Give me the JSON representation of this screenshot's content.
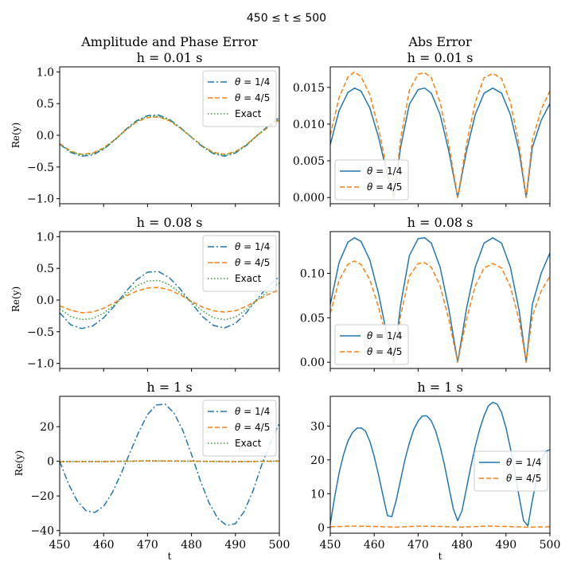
{
  "suptitle": "450 ≤ t ≤ 500",
  "colors": {
    "theta_quarter": "#1f77b4",
    "theta_four_fifths": "#ff7f0e",
    "exact": "#2ca02c"
  },
  "chart_data": [
    {
      "id": "amp-h001",
      "type": "line",
      "title_line1": "Amplitude and Phase Error",
      "title_line2": "h = 0.01 s",
      "xlabel": "",
      "ylabel": "Re(y)",
      "xlim": [
        450,
        500
      ],
      "ylim": [
        -1.08,
        1.08
      ],
      "xticks": [],
      "yticks": [
        -1.0,
        -0.5,
        0.0,
        0.5,
        1.0
      ],
      "ytick_labels": [
        "−1.0",
        "−0.5",
        "0.0",
        "0.5",
        "1.0"
      ],
      "legend_location": "upper-right",
      "series": [
        {
          "name": "θ = 1/4",
          "style": "dashdot",
          "color": "#1f77b4",
          "x": [
            450,
            452.5,
            455,
            457.5,
            460,
            462.5,
            465,
            467.5,
            470,
            472.5,
            475,
            477.5,
            480,
            482.5,
            485,
            487.5,
            490,
            492.5,
            495,
            497.5,
            500
          ],
          "y": [
            -0.14,
            -0.27,
            -0.33,
            -0.31,
            -0.22,
            -0.08,
            0.09,
            0.23,
            0.31,
            0.32,
            0.25,
            0.12,
            -0.03,
            -0.18,
            -0.29,
            -0.33,
            -0.28,
            -0.16,
            0.0,
            0.15,
            0.28
          ]
        },
        {
          "name": "θ = 4/5",
          "style": "dashed",
          "color": "#ff7f0e",
          "x": [
            450,
            452.5,
            455,
            457.5,
            460,
            462.5,
            465,
            467.5,
            470,
            472.5,
            475,
            477.5,
            480,
            482.5,
            485,
            487.5,
            490,
            492.5,
            495,
            497.5,
            500
          ],
          "y": [
            -0.13,
            -0.25,
            -0.3,
            -0.28,
            -0.2,
            -0.07,
            0.08,
            0.21,
            0.28,
            0.29,
            0.23,
            0.11,
            -0.03,
            -0.17,
            -0.27,
            -0.3,
            -0.26,
            -0.15,
            0.0,
            0.13,
            0.24
          ]
        },
        {
          "name": "Exact",
          "style": "dotted",
          "color": "#2ca02c",
          "x": [
            450,
            452.5,
            455,
            457.5,
            460,
            462.5,
            465,
            467.5,
            470,
            472.5,
            475,
            477.5,
            480,
            482.5,
            485,
            487.5,
            490,
            492.5,
            495,
            497.5,
            500
          ],
          "y": [
            -0.14,
            -0.26,
            -0.31,
            -0.29,
            -0.21,
            -0.07,
            0.08,
            0.22,
            0.3,
            0.3,
            0.24,
            0.11,
            -0.03,
            -0.17,
            -0.28,
            -0.31,
            -0.27,
            -0.15,
            0.0,
            0.14,
            0.26
          ]
        }
      ]
    },
    {
      "id": "err-h001",
      "type": "line",
      "title_line1": "Abs Error",
      "title_line2": "h = 0.01 s",
      "xlabel": "",
      "ylabel": "",
      "xlim": [
        450,
        500
      ],
      "ylim": [
        -0.00085,
        0.0178
      ],
      "xticks": [],
      "yticks": [
        0.0,
        0.005,
        0.01,
        0.015
      ],
      "ytick_labels": [
        "0.000",
        "0.005",
        "0.010",
        "0.015"
      ],
      "legend_location": "lower-left",
      "series": [
        {
          "name": "θ = 1/4",
          "style": "solid",
          "color": "#1f77b4",
          "x": [
            450,
            452,
            454,
            455.5,
            457,
            459,
            461,
            463,
            464.5,
            466,
            468,
            470,
            471.5,
            473,
            475,
            477,
            479,
            481,
            483,
            485,
            487,
            489,
            491,
            493,
            494.6,
            496,
            498,
            500
          ],
          "y": [
            0.0072,
            0.0118,
            0.0143,
            0.0149,
            0.0145,
            0.0122,
            0.0082,
            0.003,
            0.0,
            0.0068,
            0.0127,
            0.0147,
            0.0149,
            0.0142,
            0.0113,
            0.0063,
            0.0,
            0.0063,
            0.0113,
            0.0142,
            0.0149,
            0.0142,
            0.0113,
            0.0062,
            0.0,
            0.0068,
            0.0105,
            0.0128
          ]
        },
        {
          "name": "θ = 4/5",
          "style": "dashed",
          "color": "#ff7f0e",
          "x": [
            450,
            452,
            454,
            455.5,
            457,
            459,
            461,
            463,
            464.5,
            466,
            468,
            470,
            471.5,
            473,
            475,
            477,
            479,
            481,
            483,
            485,
            487,
            489,
            491,
            493,
            494.6,
            496,
            498,
            500
          ],
          "y": [
            0.0085,
            0.0136,
            0.0164,
            0.0171,
            0.0165,
            0.014,
            0.0094,
            0.0035,
            0.0,
            0.0079,
            0.0146,
            0.0168,
            0.017,
            0.0163,
            0.013,
            0.0072,
            0.0,
            0.0072,
            0.013,
            0.0163,
            0.0169,
            0.0162,
            0.013,
            0.0071,
            0.0,
            0.0078,
            0.012,
            0.0145
          ]
        }
      ]
    },
    {
      "id": "amp-h008",
      "type": "line",
      "title_line1": "h = 0.08 s",
      "title_line2": "",
      "xlabel": "",
      "ylabel": "Re(y)",
      "xlim": [
        450,
        500
      ],
      "ylim": [
        -1.08,
        1.08
      ],
      "xticks": [],
      "yticks": [
        -1.0,
        -0.5,
        0.0,
        0.5,
        1.0
      ],
      "ytick_labels": [
        "−1.0",
        "−0.5",
        "0.0",
        "0.5",
        "1.0"
      ],
      "legend_location": "upper-right",
      "series": [
        {
          "name": "θ = 1/4",
          "style": "dashdot",
          "color": "#1f77b4",
          "x": [
            450,
            452.5,
            455,
            457.5,
            460,
            462.5,
            465,
            467.5,
            470,
            472.5,
            475,
            477.5,
            480,
            482.5,
            485,
            487.5,
            490,
            492.5,
            495,
            497.5,
            500
          ],
          "y": [
            -0.2,
            -0.39,
            -0.45,
            -0.41,
            -0.28,
            -0.09,
            0.13,
            0.32,
            0.44,
            0.45,
            0.35,
            0.17,
            -0.05,
            -0.26,
            -0.4,
            -0.44,
            -0.37,
            -0.2,
            0.02,
            0.22,
            0.37
          ]
        },
        {
          "name": "θ = 4/5",
          "style": "dashed",
          "color": "#ff7f0e",
          "x": [
            450,
            452.5,
            455,
            457.5,
            460,
            462.5,
            465,
            467.5,
            470,
            472.5,
            475,
            477.5,
            480,
            482.5,
            485,
            487.5,
            490,
            492.5,
            495,
            497.5,
            500
          ],
          "y": [
            -0.09,
            -0.16,
            -0.2,
            -0.19,
            -0.13,
            -0.04,
            0.06,
            0.14,
            0.19,
            0.2,
            0.16,
            0.08,
            -0.02,
            -0.11,
            -0.17,
            -0.19,
            -0.17,
            -0.1,
            0.0,
            0.09,
            0.16
          ]
        },
        {
          "name": "Exact",
          "style": "dotted",
          "color": "#2ca02c",
          "x": [
            450,
            452.5,
            455,
            457.5,
            460,
            462.5,
            465,
            467.5,
            470,
            472.5,
            475,
            477.5,
            480,
            482.5,
            485,
            487.5,
            490,
            492.5,
            495,
            497.5,
            500
          ],
          "y": [
            -0.14,
            -0.26,
            -0.31,
            -0.29,
            -0.21,
            -0.07,
            0.08,
            0.22,
            0.3,
            0.31,
            0.24,
            0.11,
            -0.03,
            -0.17,
            -0.28,
            -0.31,
            -0.27,
            -0.15,
            0.0,
            0.14,
            0.27
          ]
        }
      ]
    },
    {
      "id": "err-h008",
      "type": "line",
      "title_line1": "h = 0.08 s",
      "title_line2": "",
      "xlabel": "",
      "ylabel": "",
      "xlim": [
        450,
        500
      ],
      "ylim": [
        -0.007,
        0.147
      ],
      "xticks": [],
      "yticks": [
        0.0,
        0.05,
        0.1
      ],
      "ytick_labels": [
        "0.00",
        "0.05",
        "0.10"
      ],
      "legend_location": "lower-left",
      "series": [
        {
          "name": "θ = 1/4",
          "style": "solid",
          "color": "#1f77b4",
          "x": [
            450,
            452,
            454,
            455.5,
            457,
            459,
            461,
            463,
            464.5,
            466,
            468,
            470,
            471.5,
            473,
            475,
            477,
            479,
            481,
            483,
            485,
            487,
            489,
            491,
            493,
            494.6,
            496,
            498,
            500
          ],
          "y": [
            0.065,
            0.112,
            0.135,
            0.14,
            0.136,
            0.115,
            0.077,
            0.028,
            0.0,
            0.064,
            0.12,
            0.139,
            0.14,
            0.134,
            0.107,
            0.06,
            0.0,
            0.06,
            0.107,
            0.134,
            0.14,
            0.134,
            0.107,
            0.058,
            0.0,
            0.065,
            0.1,
            0.123
          ]
        },
        {
          "name": "θ = 4/5",
          "style": "dashed",
          "color": "#ff7f0e",
          "x": [
            450,
            452,
            454,
            455.5,
            457,
            459,
            461,
            463,
            464.5,
            466,
            468,
            470,
            471.5,
            473,
            475,
            477,
            479,
            481,
            483,
            485,
            487,
            489,
            491,
            493,
            494.6,
            496,
            498,
            500
          ],
          "y": [
            0.055,
            0.092,
            0.11,
            0.114,
            0.11,
            0.093,
            0.062,
            0.023,
            0.0,
            0.052,
            0.097,
            0.111,
            0.112,
            0.107,
            0.086,
            0.048,
            0.0,
            0.048,
            0.086,
            0.106,
            0.111,
            0.106,
            0.085,
            0.047,
            0.0,
            0.052,
            0.08,
            0.097
          ]
        }
      ]
    },
    {
      "id": "amp-h1",
      "type": "line",
      "title_line1": "h = 1 s",
      "title_line2": "",
      "xlabel": "t",
      "ylabel": "Re(y)",
      "xlim": [
        450,
        500
      ],
      "ylim": [
        -41.5,
        37.5
      ],
      "xticks": [
        450,
        460,
        470,
        480,
        490,
        500
      ],
      "yticks": [
        -40,
        -20,
        0,
        20
      ],
      "ytick_labels": [
        "−40",
        "−20",
        "0",
        "20"
      ],
      "legend_location": "upper-right",
      "series": [
        {
          "name": "θ = 1/4",
          "style": "dashdot",
          "color": "#1f77b4",
          "x": [
            450,
            452,
            454,
            456,
            458,
            460,
            462,
            464,
            466,
            468,
            470,
            472,
            474,
            476,
            478,
            480,
            482,
            484,
            486,
            488,
            490,
            492,
            494,
            496,
            498,
            500
          ],
          "y": [
            0,
            -13,
            -23,
            -28.5,
            -29.5,
            -26,
            -18,
            -7,
            5,
            17,
            27,
            32.5,
            33,
            28,
            18,
            4,
            -11,
            -24,
            -33,
            -37,
            -36,
            -29,
            -17,
            -2,
            11,
            22
          ]
        },
        {
          "name": "θ = 4/5",
          "style": "dashed",
          "color": "#ff7f0e",
          "x": [
            450,
            460,
            470,
            480,
            490,
            500
          ],
          "y": [
            -0.2,
            -0.1,
            0.2,
            0.1,
            -0.2,
            0.1
          ]
        },
        {
          "name": "Exact",
          "style": "dotted",
          "color": "#2ca02c",
          "x": [
            450,
            460,
            470,
            480,
            490,
            500
          ],
          "y": [
            -0.1,
            -0.2,
            0.3,
            0.0,
            -0.3,
            0.2
          ]
        }
      ]
    },
    {
      "id": "err-h1",
      "type": "line",
      "title_line1": "h = 1 s",
      "title_line2": "",
      "xlabel": "t",
      "ylabel": "",
      "xlim": [
        450,
        500
      ],
      "ylim": [
        -1.7,
        38.8
      ],
      "xticks": [
        450,
        460,
        470,
        480,
        490,
        500
      ],
      "yticks": [
        0,
        10,
        20,
        30
      ],
      "ytick_labels": [
        "0",
        "10",
        "20",
        "30"
      ],
      "legend_location": "center-right",
      "series": [
        {
          "name": "θ = 1/4",
          "style": "solid",
          "color": "#1f77b4",
          "x": [
            450,
            451,
            452,
            453,
            454,
            455,
            456,
            457,
            458,
            459,
            460,
            461,
            462,
            463,
            464,
            465,
            466,
            467,
            468,
            469,
            470,
            471,
            472,
            473,
            474,
            475,
            476,
            477,
            478,
            479,
            480,
            481,
            482,
            483,
            484,
            485,
            486,
            487,
            488,
            489,
            490,
            491,
            492,
            493,
            494,
            495,
            496,
            497,
            498,
            499,
            500
          ],
          "y": [
            1,
            9,
            16,
            21.5,
            25.5,
            28,
            29.3,
            29.5,
            28.5,
            25.5,
            21,
            15.5,
            9.5,
            3.5,
            3.2,
            8,
            14,
            20,
            25,
            29,
            31.5,
            33,
            33,
            31.5,
            28.5,
            24,
            18.5,
            12,
            5.5,
            2,
            5,
            11.5,
            18,
            24,
            29,
            33,
            36,
            37,
            36.5,
            34,
            29.5,
            23.5,
            16.5,
            9,
            2,
            0.5,
            8,
            14.5,
            19.5,
            22.5,
            23
          ]
        },
        {
          "name": "θ = 4/5",
          "style": "dashed",
          "color": "#ff7f0e",
          "x": [
            450,
            455,
            460,
            465,
            470,
            475,
            480,
            485,
            490,
            495,
            500
          ],
          "y": [
            0.2,
            0.4,
            0.3,
            0.1,
            0.4,
            0.3,
            0.1,
            0.4,
            0.3,
            0.1,
            0.2
          ]
        }
      ]
    }
  ]
}
